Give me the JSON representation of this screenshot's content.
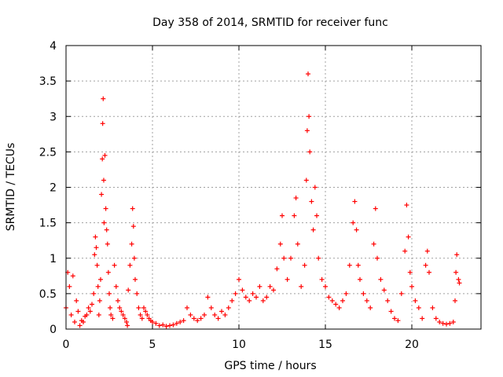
{
  "chart_data": {
    "type": "scatter",
    "title": "Day 358 of 2014, SRMTID for receiver func",
    "xlabel": "GPS time / hours",
    "ylabel": "SRMTID / TECUs",
    "xlim": [
      0,
      24
    ],
    "ylim": [
      0,
      4
    ],
    "x_ticks": [
      0,
      5,
      10,
      15,
      20
    ],
    "x_tick_labels": [
      "0",
      "5",
      "10",
      "15",
      "20"
    ],
    "y_ticks": [
      0,
      0.5,
      1,
      1.5,
      2,
      2.5,
      3,
      3.5,
      4
    ],
    "y_tick_labels": [
      "0",
      "0.5",
      "1",
      "1.5",
      "2",
      "2.5",
      "3",
      "3.5",
      "4"
    ],
    "grid": true,
    "marker": "+",
    "series": [
      {
        "name": "SRMTID",
        "color": "#ff0000",
        "points": [
          [
            0.0,
            0.3
          ],
          [
            0.1,
            0.8
          ],
          [
            0.2,
            0.6
          ],
          [
            0.3,
            0.2
          ],
          [
            0.4,
            0.75
          ],
          [
            0.5,
            0.1
          ],
          [
            0.6,
            0.4
          ],
          [
            0.7,
            0.25
          ],
          [
            0.8,
            0.05
          ],
          [
            0.9,
            0.12
          ],
          [
            1.0,
            0.1
          ],
          [
            1.1,
            0.18
          ],
          [
            1.2,
            0.2
          ],
          [
            1.3,
            0.3
          ],
          [
            1.4,
            0.25
          ],
          [
            1.5,
            0.35
          ],
          [
            1.6,
            0.5
          ],
          [
            1.65,
            1.05
          ],
          [
            1.7,
            1.3
          ],
          [
            1.75,
            1.15
          ],
          [
            1.8,
            0.9
          ],
          [
            1.85,
            0.6
          ],
          [
            1.9,
            0.2
          ],
          [
            1.95,
            0.4
          ],
          [
            2.0,
            0.7
          ],
          [
            2.05,
            1.9
          ],
          [
            2.1,
            2.4
          ],
          [
            2.12,
            2.9
          ],
          [
            2.15,
            3.25
          ],
          [
            2.18,
            2.1
          ],
          [
            2.2,
            1.5
          ],
          [
            2.25,
            2.45
          ],
          [
            2.3,
            1.7
          ],
          [
            2.35,
            1.4
          ],
          [
            2.4,
            1.2
          ],
          [
            2.45,
            0.8
          ],
          [
            2.5,
            0.5
          ],
          [
            2.55,
            0.3
          ],
          [
            2.6,
            0.2
          ],
          [
            2.7,
            0.15
          ],
          [
            2.8,
            0.9
          ],
          [
            2.9,
            0.6
          ],
          [
            3.0,
            0.4
          ],
          [
            3.1,
            0.3
          ],
          [
            3.2,
            0.25
          ],
          [
            3.3,
            0.2
          ],
          [
            3.4,
            0.15
          ],
          [
            3.5,
            0.1
          ],
          [
            3.55,
            0.05
          ],
          [
            3.6,
            0.55
          ],
          [
            3.7,
            0.9
          ],
          [
            3.8,
            1.2
          ],
          [
            3.85,
            1.7
          ],
          [
            3.9,
            1.45
          ],
          [
            3.95,
            1.0
          ],
          [
            4.0,
            0.7
          ],
          [
            4.1,
            0.5
          ],
          [
            4.2,
            0.3
          ],
          [
            4.3,
            0.2
          ],
          [
            4.4,
            0.15
          ],
          [
            4.5,
            0.3
          ],
          [
            4.6,
            0.25
          ],
          [
            4.7,
            0.2
          ],
          [
            4.8,
            0.15
          ],
          [
            4.9,
            0.12
          ],
          [
            5.0,
            0.1
          ],
          [
            5.2,
            0.08
          ],
          [
            5.4,
            0.05
          ],
          [
            5.6,
            0.06
          ],
          [
            5.8,
            0.04
          ],
          [
            6.0,
            0.05
          ],
          [
            6.2,
            0.06
          ],
          [
            6.4,
            0.08
          ],
          [
            6.6,
            0.1
          ],
          [
            6.8,
            0.12
          ],
          [
            7.0,
            0.3
          ],
          [
            7.2,
            0.2
          ],
          [
            7.4,
            0.15
          ],
          [
            7.6,
            0.12
          ],
          [
            7.8,
            0.15
          ],
          [
            8.0,
            0.2
          ],
          [
            8.2,
            0.45
          ],
          [
            8.4,
            0.3
          ],
          [
            8.6,
            0.2
          ],
          [
            8.8,
            0.15
          ],
          [
            9.0,
            0.25
          ],
          [
            9.2,
            0.2
          ],
          [
            9.4,
            0.3
          ],
          [
            9.6,
            0.4
          ],
          [
            9.8,
            0.5
          ],
          [
            10.0,
            0.7
          ],
          [
            10.2,
            0.55
          ],
          [
            10.4,
            0.45
          ],
          [
            10.6,
            0.4
          ],
          [
            10.8,
            0.5
          ],
          [
            11.0,
            0.45
          ],
          [
            11.2,
            0.6
          ],
          [
            11.4,
            0.4
          ],
          [
            11.6,
            0.45
          ],
          [
            11.8,
            0.6
          ],
          [
            12.0,
            0.55
          ],
          [
            12.2,
            0.85
          ],
          [
            12.4,
            1.2
          ],
          [
            12.5,
            1.6
          ],
          [
            12.6,
            1.0
          ],
          [
            12.8,
            0.7
          ],
          [
            13.0,
            1.0
          ],
          [
            13.2,
            1.6
          ],
          [
            13.3,
            1.85
          ],
          [
            13.4,
            1.2
          ],
          [
            13.6,
            0.6
          ],
          [
            13.8,
            0.9
          ],
          [
            13.9,
            2.1
          ],
          [
            13.95,
            2.8
          ],
          [
            14.0,
            3.6
          ],
          [
            14.05,
            3.0
          ],
          [
            14.1,
            2.5
          ],
          [
            14.2,
            1.8
          ],
          [
            14.3,
            1.4
          ],
          [
            14.4,
            2.0
          ],
          [
            14.5,
            1.6
          ],
          [
            14.6,
            1.0
          ],
          [
            14.8,
            0.7
          ],
          [
            15.0,
            0.6
          ],
          [
            15.2,
            0.45
          ],
          [
            15.4,
            0.4
          ],
          [
            15.6,
            0.35
          ],
          [
            15.8,
            0.3
          ],
          [
            16.0,
            0.4
          ],
          [
            16.2,
            0.5
          ],
          [
            16.4,
            0.9
          ],
          [
            16.6,
            1.5
          ],
          [
            16.7,
            1.8
          ],
          [
            16.8,
            1.4
          ],
          [
            16.9,
            0.9
          ],
          [
            17.0,
            0.7
          ],
          [
            17.2,
            0.5
          ],
          [
            17.4,
            0.4
          ],
          [
            17.6,
            0.3
          ],
          [
            17.8,
            1.2
          ],
          [
            17.9,
            1.7
          ],
          [
            18.0,
            1.0
          ],
          [
            18.2,
            0.7
          ],
          [
            18.4,
            0.55
          ],
          [
            18.6,
            0.4
          ],
          [
            18.8,
            0.25
          ],
          [
            19.0,
            0.15
          ],
          [
            19.2,
            0.12
          ],
          [
            19.4,
            0.5
          ],
          [
            19.6,
            1.1
          ],
          [
            19.7,
            1.75
          ],
          [
            19.8,
            1.3
          ],
          [
            19.9,
            0.8
          ],
          [
            20.0,
            0.6
          ],
          [
            20.2,
            0.4
          ],
          [
            20.4,
            0.3
          ],
          [
            20.6,
            0.15
          ],
          [
            20.8,
            0.9
          ],
          [
            20.9,
            1.1
          ],
          [
            21.0,
            0.8
          ],
          [
            21.2,
            0.3
          ],
          [
            21.4,
            0.15
          ],
          [
            21.6,
            0.1
          ],
          [
            21.8,
            0.08
          ],
          [
            22.0,
            0.07
          ],
          [
            22.2,
            0.08
          ],
          [
            22.4,
            0.1
          ],
          [
            22.5,
            0.4
          ],
          [
            22.55,
            0.8
          ],
          [
            22.6,
            1.05
          ],
          [
            22.7,
            0.7
          ],
          [
            22.75,
            0.65
          ]
        ]
      }
    ]
  }
}
